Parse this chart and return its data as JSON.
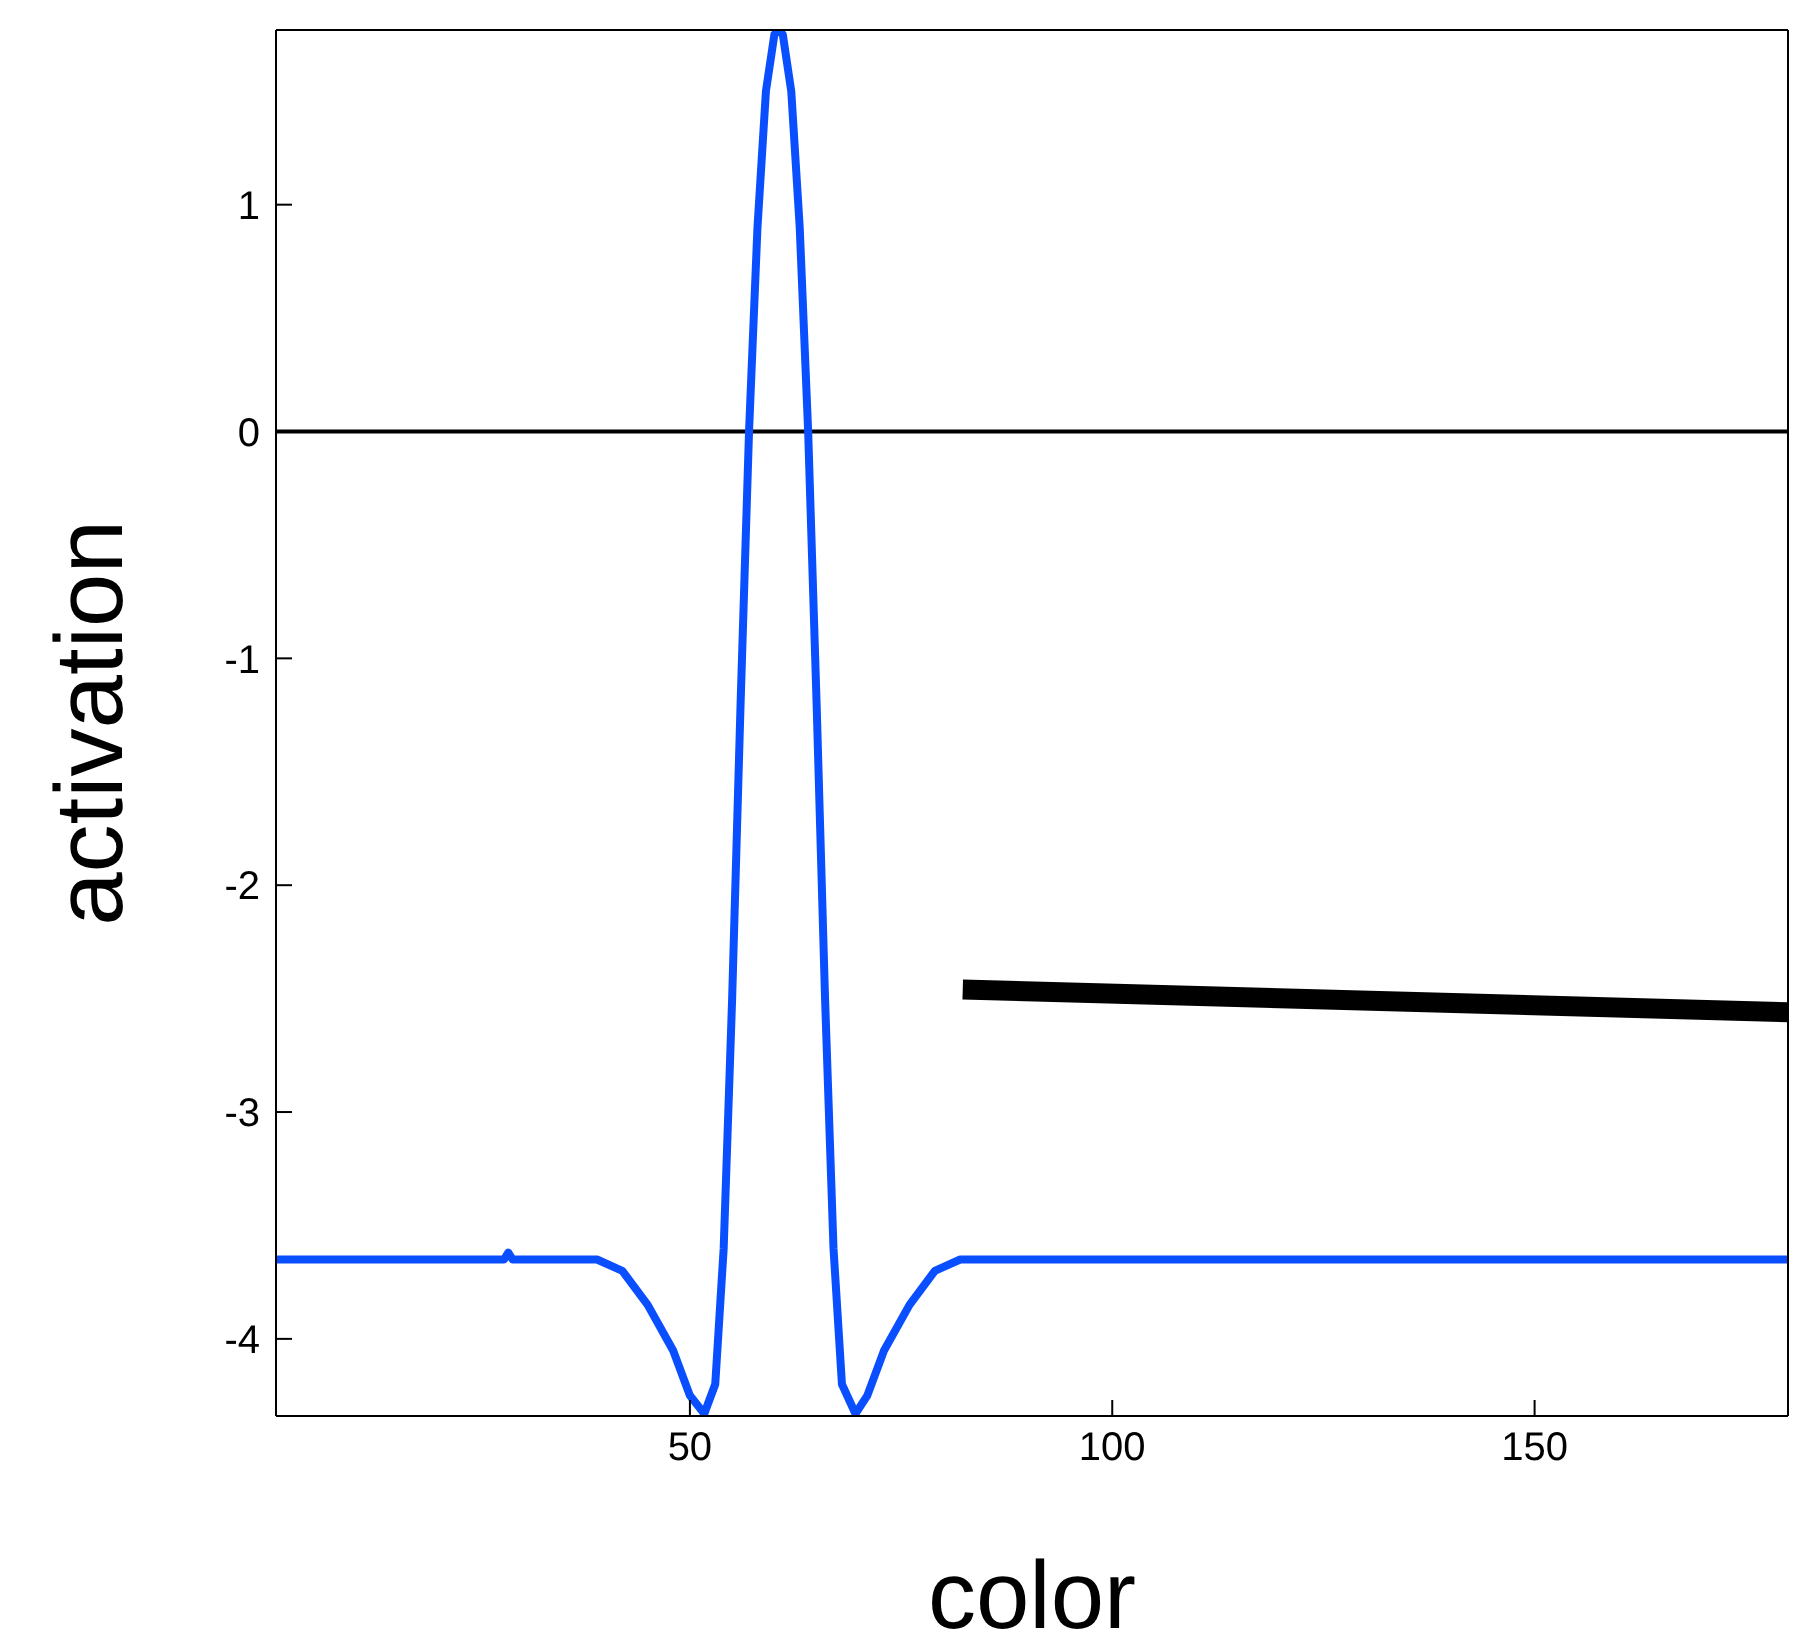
{
  "chart_data": {
    "type": "line",
    "xlabel": "color",
    "ylabel": "activation",
    "x": [
      1,
      28,
      28.5,
      29,
      39,
      42,
      45,
      48,
      50,
      51.7,
      53,
      54,
      55,
      56,
      57,
      58,
      59,
      60,
      60.6,
      61,
      62,
      63,
      64,
      65,
      66,
      67,
      68,
      69.6,
      71,
      73,
      76,
      79,
      82,
      180
    ],
    "series": [
      {
        "color": "#0a4fff",
        "values": [
          -3.65,
          -3.65,
          -3.62,
          -3.65,
          -3.65,
          -3.7,
          -3.85,
          -4.05,
          -4.25,
          -4.33,
          -4.2,
          -3.6,
          -2.5,
          -1.2,
          0,
          0.9,
          1.5,
          1.75,
          1.77,
          1.75,
          1.5,
          0.9,
          0,
          -1.2,
          -2.5,
          -3.6,
          -4.2,
          -4.33,
          -4.25,
          -4.05,
          -3.85,
          -3.7,
          -3.65,
          -3.65
        ]
      },
      {
        "type": "line",
        "color": "#000000",
        "x": [
          82.3,
          180
        ],
        "values": [
          -2.46,
          -2.56
        ]
      }
    ],
    "xlim": [
      1,
      180
    ],
    "xticks": [
      50,
      100,
      150
    ],
    "ylim": [
      -4.34,
      1.77
    ],
    "yticks": [
      -4,
      -3,
      -2,
      -1,
      0,
      1
    ],
    "ref_lines": [
      {
        "axis": "y",
        "value": 0,
        "color": "#000000"
      }
    ],
    "grid": false,
    "legend": false,
    "marker": "none",
    "line_style": "solid"
  }
}
